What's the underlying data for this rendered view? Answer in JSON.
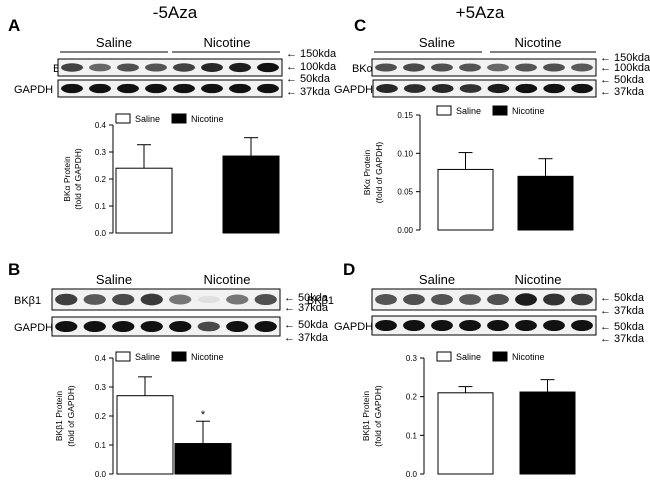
{
  "figure": {
    "titles": {
      "left": "-5Aza",
      "right": "+5Aza"
    },
    "panels": [
      {
        "letter": "A",
        "group_labels": [
          "Saline",
          "Nicotine"
        ],
        "blots": [
          {
            "label": "BKα",
            "lanes": [
              0.78,
              0.62,
              0.72,
              0.7,
              0.78,
              0.9,
              0.95,
              1.0
            ]
          },
          {
            "label": "GAPDH",
            "lanes": [
              1.0,
              1.0,
              1.0,
              1.0,
              1.0,
              1.0,
              1.0,
              1.0
            ]
          }
        ],
        "markers": [
          "150kda",
          "100kda",
          "50kda",
          "37kda"
        ]
      },
      {
        "letter": "C",
        "group_labels": [
          "Saline",
          "Nicotine"
        ],
        "blots": [
          {
            "label": "BKα",
            "lanes": [
              0.72,
              0.75,
              0.72,
              0.7,
              0.62,
              0.7,
              0.72,
              0.68
            ]
          },
          {
            "label": "GAPDH",
            "lanes": [
              0.9,
              0.88,
              0.9,
              0.85,
              0.95,
              1.0,
              1.0,
              1.0
            ]
          }
        ],
        "markers": [
          "150kda",
          "100kda",
          "50kda",
          "37kda"
        ]
      },
      {
        "letter": "B",
        "group_labels": [
          "Saline",
          "Nicotine"
        ],
        "blots": [
          {
            "label": "BKβ1",
            "lanes": [
              0.8,
              0.68,
              0.75,
              0.82,
              0.55,
              0.08,
              0.55,
              0.72
            ]
          },
          {
            "label": "GAPDH",
            "lanes": [
              1.0,
              1.0,
              1.0,
              1.0,
              1.0,
              0.75,
              1.0,
              1.0
            ]
          }
        ],
        "markers": [
          "50kda",
          "37kda",
          "50kda",
          "37kda"
        ]
      },
      {
        "letter": "D",
        "group_labels": [
          "Saline",
          "Nicotine"
        ],
        "blots": [
          {
            "label": "BKβ1",
            "lanes": [
              0.7,
              0.72,
              0.7,
              0.68,
              0.72,
              0.95,
              0.85,
              0.8
            ]
          },
          {
            "label": "GAPDH",
            "lanes": [
              1.0,
              1.0,
              1.0,
              1.0,
              1.0,
              1.0,
              1.0,
              1.0
            ]
          }
        ],
        "markers": [
          "50kda",
          "37kda",
          "50kda",
          "37kda"
        ]
      }
    ]
  },
  "chart_data": [
    {
      "panel": "A",
      "type": "bar",
      "categories": [
        "Saline",
        "Nicotine"
      ],
      "values": [
        0.24,
        0.285
      ],
      "errors": [
        0.087,
        0.068
      ],
      "ylabel_lines": [
        "BKα Protein",
        "(fold of GAPDH)"
      ],
      "ylim": [
        0,
        0.4
      ],
      "yticks": [
        0.0,
        0.1,
        0.2,
        0.3,
        0.4
      ],
      "ytick_labels": [
        "0.0",
        "0.1",
        "0.2",
        "0.3",
        "0.4"
      ],
      "legend": [
        "Saline",
        "Nicotine"
      ],
      "legend_placement": "top",
      "colors": [
        "#ffffff",
        "#000000"
      ],
      "significance": [
        "",
        ""
      ]
    },
    {
      "panel": "C",
      "type": "bar",
      "categories": [
        "Saline",
        "Nicotine"
      ],
      "values": [
        0.079,
        0.07
      ],
      "errors": [
        0.022,
        0.023
      ],
      "ylabel_lines": [
        "BKα Protein",
        "(fold of GAPDH)"
      ],
      "ylim": [
        0,
        0.15
      ],
      "yticks": [
        0.0,
        0.05,
        0.1,
        0.15
      ],
      "ytick_labels": [
        "0.00",
        "0.05",
        "0.10",
        "0.15"
      ],
      "legend": [
        "Saline",
        "Nicotine"
      ],
      "legend_placement": "top",
      "colors": [
        "#ffffff",
        "#000000"
      ],
      "significance": [
        "",
        ""
      ]
    },
    {
      "panel": "B",
      "type": "bar",
      "categories": [
        "Saline",
        "Nicotine"
      ],
      "values": [
        0.27,
        0.105
      ],
      "errors": [
        0.065,
        0.077
      ],
      "ylabel_lines": [
        "BKβ1 Protein",
        "(fold of GAPDH)"
      ],
      "ylim": [
        0,
        0.4
      ],
      "yticks": [
        0.0,
        0.1,
        0.2,
        0.3,
        0.4
      ],
      "ytick_labels": [
        "0.0",
        "0.1",
        "0.2",
        "0.3",
        "0.4"
      ],
      "legend": [
        "Saline",
        "Nicotine"
      ],
      "legend_placement": "top",
      "colors": [
        "#ffffff",
        "#000000"
      ],
      "significance": [
        "",
        "*"
      ]
    },
    {
      "panel": "D",
      "type": "bar",
      "categories": [
        "Saline",
        "Nicotine"
      ],
      "values": [
        0.21,
        0.212
      ],
      "errors": [
        0.016,
        0.032
      ],
      "ylabel_lines": [
        "BKβ1 Protein",
        "(fold of GAPDH)"
      ],
      "ylim": [
        0,
        0.3
      ],
      "yticks": [
        0.0,
        0.1,
        0.2,
        0.3
      ],
      "ytick_labels": [
        "0.0",
        "0.1",
        "0.2",
        "0.3"
      ],
      "legend": [
        "Saline",
        "Nicotine"
      ],
      "legend_placement": "top",
      "colors": [
        "#ffffff",
        "#000000"
      ],
      "significance": [
        "",
        ""
      ]
    }
  ]
}
